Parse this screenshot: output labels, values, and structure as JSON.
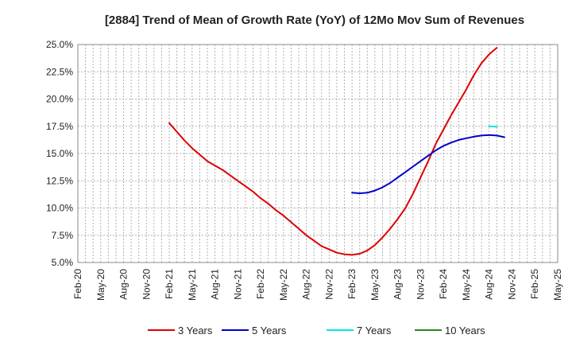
{
  "chart_data": {
    "type": "line",
    "title": "[2884]  Trend of Mean of Growth Rate (YoY) of 12Mo Mov Sum of Revenues",
    "xlabel": "",
    "ylabel": "",
    "ylim": [
      5.0,
      25.0
    ],
    "y_ticks": [
      5.0,
      7.5,
      10.0,
      12.5,
      15.0,
      17.5,
      20.0,
      22.5,
      25.0
    ],
    "y_tick_labels": [
      "5.0%",
      "7.5%",
      "10.0%",
      "12.5%",
      "15.0%",
      "17.5%",
      "20.0%",
      "22.5%",
      "25.0%"
    ],
    "x_tick_labels": [
      "Feb-20",
      "May-20",
      "Aug-20",
      "Nov-20",
      "Feb-21",
      "May-21",
      "Aug-21",
      "Nov-21",
      "Feb-22",
      "May-22",
      "Aug-22",
      "Nov-22",
      "Feb-23",
      "May-23",
      "Aug-23",
      "Nov-23",
      "Feb-24",
      "May-24",
      "Aug-24",
      "Nov-24",
      "Feb-25",
      "May-25"
    ],
    "x_range_months": [
      0,
      63
    ],
    "grid": true,
    "legend_position": "bottom",
    "series": [
      {
        "name": "3 Years",
        "color": "#dd0000",
        "points": [
          [
            12,
            17.8
          ],
          [
            13,
            17.0
          ],
          [
            14,
            16.2
          ],
          [
            15,
            15.5
          ],
          [
            16,
            14.9
          ],
          [
            17,
            14.3
          ],
          [
            18,
            13.9
          ],
          [
            19,
            13.5
          ],
          [
            20,
            13.0
          ],
          [
            21,
            12.5
          ],
          [
            22,
            12.0
          ],
          [
            23,
            11.5
          ],
          [
            24,
            10.9
          ],
          [
            25,
            10.4
          ],
          [
            26,
            9.8
          ],
          [
            27,
            9.3
          ],
          [
            28,
            8.7
          ],
          [
            29,
            8.1
          ],
          [
            30,
            7.5
          ],
          [
            31,
            7.0
          ],
          [
            32,
            6.5
          ],
          [
            33,
            6.2
          ],
          [
            34,
            5.9
          ],
          [
            35,
            5.75
          ],
          [
            36,
            5.7
          ],
          [
            37,
            5.8
          ],
          [
            38,
            6.1
          ],
          [
            39,
            6.6
          ],
          [
            40,
            7.3
          ],
          [
            41,
            8.1
          ],
          [
            42,
            9.0
          ],
          [
            43,
            10.0
          ],
          [
            44,
            11.3
          ],
          [
            45,
            12.8
          ],
          [
            46,
            14.3
          ],
          [
            47,
            15.9
          ],
          [
            48,
            17.2
          ],
          [
            49,
            18.5
          ],
          [
            50,
            19.7
          ],
          [
            51,
            20.9
          ],
          [
            52,
            22.2
          ],
          [
            53,
            23.3
          ],
          [
            54,
            24.1
          ],
          [
            55,
            24.7
          ]
        ]
      },
      {
        "name": "5 Years",
        "color": "#0000cc",
        "points": [
          [
            36,
            11.4
          ],
          [
            37,
            11.35
          ],
          [
            38,
            11.4
          ],
          [
            39,
            11.6
          ],
          [
            40,
            11.9
          ],
          [
            41,
            12.3
          ],
          [
            42,
            12.8
          ],
          [
            43,
            13.3
          ],
          [
            44,
            13.8
          ],
          [
            45,
            14.3
          ],
          [
            46,
            14.8
          ],
          [
            47,
            15.3
          ],
          [
            48,
            15.7
          ],
          [
            49,
            16.0
          ],
          [
            50,
            16.25
          ],
          [
            51,
            16.4
          ],
          [
            52,
            16.55
          ],
          [
            53,
            16.65
          ],
          [
            54,
            16.7
          ],
          [
            55,
            16.65
          ],
          [
            56,
            16.5
          ]
        ]
      },
      {
        "name": "7 Years",
        "color": "#00e5ee",
        "points": [
          [
            54,
            17.5
          ],
          [
            55,
            17.45
          ]
        ]
      },
      {
        "name": "10 Years",
        "color": "#228b22",
        "points": []
      }
    ]
  }
}
